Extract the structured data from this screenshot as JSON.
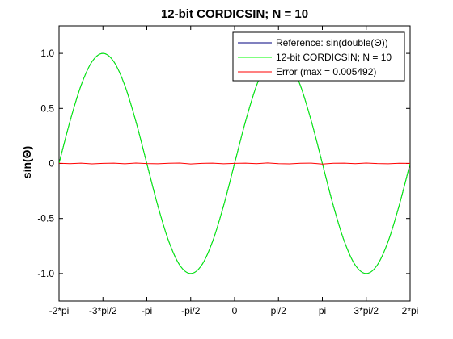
{
  "chart_data": {
    "type": "line",
    "title": "12-bit CORDICSIN; N = 10",
    "xlabel": "",
    "ylabel": "sin(Θ)",
    "xlim": [
      -6.283185307,
      6.283185307
    ],
    "ylim": [
      -1.25,
      1.25
    ],
    "x_ticks": [
      {
        "value": -6.283185307,
        "label": "-2*pi"
      },
      {
        "value": -4.71238898,
        "label": "-3*pi/2"
      },
      {
        "value": -3.141592654,
        "label": "-pi"
      },
      {
        "value": -1.570796327,
        "label": "-pi/2"
      },
      {
        "value": 0,
        "label": "0"
      },
      {
        "value": 1.570796327,
        "label": "pi/2"
      },
      {
        "value": 3.141592654,
        "label": "pi"
      },
      {
        "value": 4.71238898,
        "label": "3*pi/2"
      },
      {
        "value": 6.283185307,
        "label": "2*pi"
      }
    ],
    "y_ticks": [
      {
        "value": 1.0,
        "label": "1.0"
      },
      {
        "value": 0.5,
        "label": "0.5"
      },
      {
        "value": 0,
        "label": "0"
      },
      {
        "value": -0.5,
        "label": "-0.5"
      },
      {
        "value": -1.0,
        "label": "-1.0"
      }
    ],
    "grid": false,
    "legend_position": "top-right",
    "x": [
      -6.2832,
      -5.8905,
      -5.4978,
      -5.1051,
      -4.7124,
      -4.3197,
      -3.927,
      -3.5343,
      -3.1416,
      -2.7489,
      -2.3562,
      -1.9635,
      -1.5708,
      -1.1781,
      -0.7854,
      -0.3927,
      0,
      0.3927,
      0.7854,
      1.1781,
      1.5708,
      1.9635,
      2.3562,
      2.7489,
      3.1416,
      3.5343,
      3.927,
      4.3197,
      4.7124,
      5.1051,
      5.4978,
      5.8905,
      6.2832
    ],
    "series": [
      {
        "name": "Reference: sin(double(Θ))",
        "color": "#00007f",
        "values": [
          0,
          0.3827,
          0.7071,
          0.9239,
          1,
          0.9239,
          0.7071,
          0.3827,
          0,
          -0.3827,
          -0.7071,
          -0.9239,
          -1,
          -0.9239,
          -0.7071,
          -0.3827,
          0,
          0.3827,
          0.7071,
          0.9239,
          1,
          0.9239,
          0.7071,
          0.3827,
          0,
          -0.3827,
          -0.7071,
          -0.9239,
          -1,
          -0.9239,
          -0.7071,
          -0.3827,
          0
        ]
      },
      {
        "name": "12-bit CORDICSIN; N = 10",
        "color": "#00ff00",
        "values": [
          0,
          0.3827,
          0.7071,
          0.9239,
          1,
          0.9239,
          0.7071,
          0.3827,
          0,
          -0.3827,
          -0.7071,
          -0.9239,
          -1,
          -0.9239,
          -0.7071,
          -0.3827,
          0,
          0.3827,
          0.7071,
          0.9239,
          1,
          0.9239,
          0.7071,
          0.3827,
          0,
          -0.3827,
          -0.7071,
          -0.9239,
          -1,
          -0.9239,
          -0.7071,
          -0.3827,
          0
        ]
      },
      {
        "name": "Error (max = 0.005492)",
        "color": "#ff0000",
        "values": [
          0.0015,
          -0.002,
          0.0025,
          -0.0035,
          0.001,
          0.003,
          -0.0025,
          0.004,
          -0.001,
          -0.003,
          0.002,
          0.0035,
          -0.0045,
          0.001,
          0.0025,
          -0.003,
          0.0005,
          0.003,
          -0.002,
          0.0045,
          -0.0015,
          -0.0035,
          0.002,
          0.0025,
          -0.0055,
          0.0015,
          0.003,
          -0.002,
          0.0035,
          -0.001,
          -0.0025,
          0.002,
          0.001
        ]
      }
    ]
  }
}
